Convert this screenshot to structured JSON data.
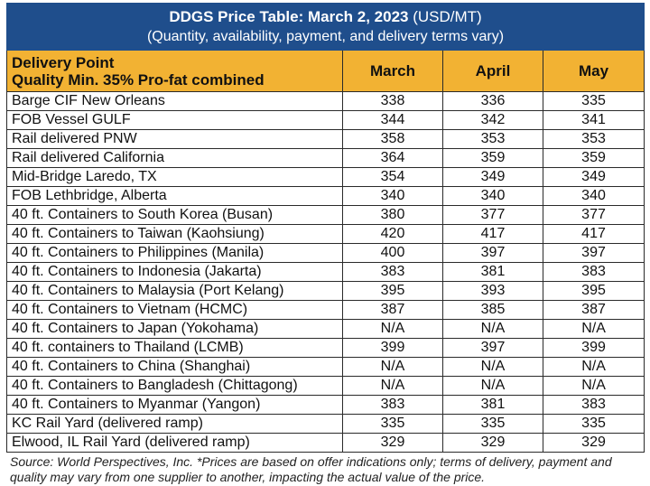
{
  "title": {
    "bold": "DDGS Price Table: March 2, 2023",
    "unit": " (USD/MT)",
    "subtitle": "(Quantity, availability, payment, and delivery terms vary)"
  },
  "header": {
    "col1_line1": "Delivery Point",
    "col1_line2": "Quality Min. 35% Pro-fat combined",
    "months": [
      "March",
      "April",
      "May"
    ]
  },
  "rows": [
    {
      "location": "Barge CIF New Orleans",
      "values": [
        "338",
        "336",
        "335"
      ]
    },
    {
      "location": "FOB Vessel GULF",
      "values": [
        "344",
        "342",
        "341"
      ]
    },
    {
      "location": "Rail delivered PNW",
      "values": [
        "358",
        "353",
        "353"
      ]
    },
    {
      "location": "Rail delivered California",
      "values": [
        "364",
        "359",
        "359"
      ]
    },
    {
      "location": "Mid-Bridge Laredo, TX",
      "values": [
        "354",
        "349",
        "349"
      ]
    },
    {
      "location": "FOB Lethbridge, Alberta",
      "values": [
        "340",
        "340",
        "340"
      ]
    },
    {
      "location": "40 ft. Containers to South Korea (Busan)",
      "values": [
        "380",
        "377",
        "377"
      ]
    },
    {
      "location": "40 ft. Containers to Taiwan (Kaohsiung)",
      "values": [
        "420",
        "417",
        "417"
      ]
    },
    {
      "location": "40 ft. Containers to Philippines (Manila)",
      "values": [
        "400",
        "397",
        "397"
      ]
    },
    {
      "location": "40 ft. Containers to Indonesia (Jakarta)",
      "values": [
        "383",
        "381",
        "383"
      ]
    },
    {
      "location": "40 ft. Containers to Malaysia (Port Kelang)",
      "values": [
        "395",
        "393",
        "395"
      ]
    },
    {
      "location": "40 ft. Containers to Vietnam (HCMC)",
      "values": [
        "387",
        "385",
        "387"
      ]
    },
    {
      "location": "40 ft. Containers to Japan (Yokohama)",
      "values": [
        "N/A",
        "N/A",
        "N/A"
      ]
    },
    {
      "location": "40 ft. containers to Thailand (LCMB)",
      "values": [
        "399",
        "397",
        "399"
      ]
    },
    {
      "location": "40 ft. Containers to China (Shanghai)",
      "values": [
        "N/A",
        "N/A",
        "N/A"
      ]
    },
    {
      "location": "40 ft. Containers to Bangladesh (Chittagong)",
      "values": [
        "N/A",
        "N/A",
        "N/A"
      ]
    },
    {
      "location": "40 ft. Containers to Myanmar (Yangon)",
      "values": [
        "383",
        "381",
        "383"
      ]
    },
    {
      "location": "KC Rail Yard (delivered ramp)",
      "values": [
        "335",
        "335",
        "335"
      ]
    },
    {
      "location": "Elwood, IL Rail Yard (delivered ramp)",
      "values": [
        "329",
        "329",
        "329"
      ]
    }
  ],
  "source_note": "Source: World Perspectives, Inc. *Prices are based on offer indications only; terms of delivery, payment and quality may vary from one supplier to another, impacting the actual value of the price.",
  "colors": {
    "title_bg": "#1f4e8c",
    "header_bg": "#f2b233"
  }
}
